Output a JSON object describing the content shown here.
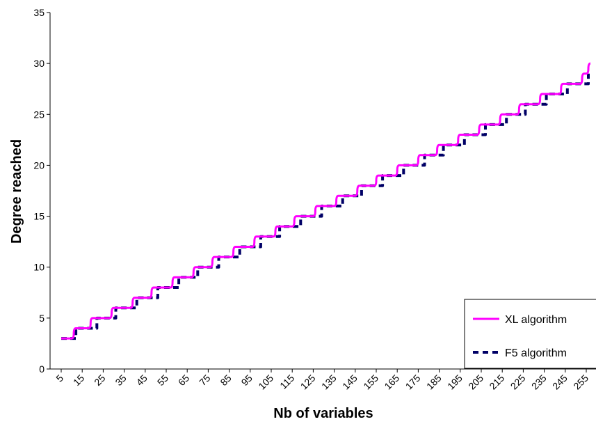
{
  "chart_data": {
    "type": "line",
    "title": "",
    "xlabel": "Nb of variables",
    "ylabel": "Degree reached",
    "x_tick_labels": [
      "5",
      "15",
      "25",
      "35",
      "45",
      "55",
      "65",
      "75",
      "85",
      "95",
      "105",
      "115",
      "125",
      "135",
      "145",
      "155",
      "165",
      "175",
      "185",
      "195",
      "205",
      "215",
      "225",
      "235",
      "245",
      "255"
    ],
    "y_tick_labels": [
      "0",
      "5",
      "10",
      "15",
      "20",
      "25",
      "30",
      "35"
    ],
    "xlim": [
      5,
      256
    ],
    "ylim": [
      0,
      35
    ],
    "grid": false,
    "legend_position": "bottom-right",
    "series": [
      {
        "name": "XL algorithm",
        "color": "#ff00ff",
        "style": "solid",
        "step_x": [
          5,
          11,
          19,
          29,
          39,
          48,
          58,
          68,
          77,
          87,
          97,
          107,
          116,
          126,
          136,
          146,
          155,
          165,
          175,
          184,
          194,
          204,
          214,
          223,
          233,
          243,
          253,
          256
        ],
        "step_y": [
          3,
          4,
          5,
          6,
          7,
          8,
          9,
          10,
          11,
          12,
          13,
          14,
          15,
          16,
          17,
          18,
          19,
          20,
          21,
          22,
          23,
          24,
          25,
          26,
          27,
          28,
          29,
          30
        ]
      },
      {
        "name": "F5 algorithm",
        "color": "#000066",
        "style": "dashed",
        "step_x": [
          5,
          12,
          22,
          31,
          41,
          51,
          61,
          70,
          80,
          90,
          100,
          109,
          119,
          129,
          139,
          148,
          158,
          168,
          178,
          187,
          197,
          207,
          217,
          226,
          236,
          246,
          256
        ],
        "step_y": [
          3,
          4,
          5,
          6,
          7,
          8,
          9,
          10,
          11,
          12,
          13,
          14,
          15,
          16,
          17,
          18,
          19,
          20,
          21,
          22,
          23,
          24,
          25,
          26,
          27,
          28,
          29
        ]
      }
    ]
  }
}
